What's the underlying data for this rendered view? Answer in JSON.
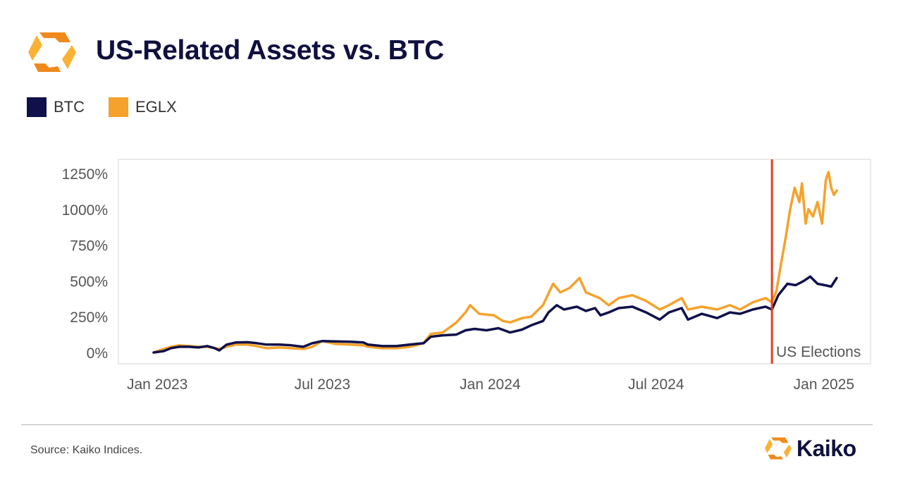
{
  "header": {
    "title": "US-Related Assets vs. BTC"
  },
  "footer": {
    "source": "Source: Kaiko Indices.",
    "brand": "Kaiko"
  },
  "colors": {
    "btc": "#10104a",
    "eglx": "#f5a22c",
    "event": "#e8401c",
    "brand_dark": "#f08a1c",
    "brand_light": "#f9b233"
  },
  "chart_data": {
    "type": "line",
    "title": "US-Related Assets vs. BTC",
    "xlabel": "",
    "ylabel": "",
    "x_ticks": [
      "Jan 2023",
      "Jul 2023",
      "Jan 2024",
      "Jul 2024",
      "Jan 2025"
    ],
    "y_ticks": [
      "0%",
      "250%",
      "500%",
      "750%",
      "1000%",
      "1250%"
    ],
    "ylim": [
      0,
      1300
    ],
    "x_range": [
      "2022-12-28",
      "2025-01-15"
    ],
    "grid": false,
    "legend_position": "top-left",
    "annotation": {
      "label": "US Elections",
      "date": "2024-11-05"
    },
    "series": [
      {
        "name": "BTC",
        "points": [
          [
            "2022-12-28",
            0
          ],
          [
            "2023-01-08",
            10
          ],
          [
            "2023-01-16",
            30
          ],
          [
            "2023-01-25",
            40
          ],
          [
            "2023-02-05",
            40
          ],
          [
            "2023-02-15",
            35
          ],
          [
            "2023-02-25",
            45
          ],
          [
            "2023-03-05",
            30
          ],
          [
            "2023-03-10",
            15
          ],
          [
            "2023-03-18",
            55
          ],
          [
            "2023-03-28",
            70
          ],
          [
            "2023-04-10",
            72
          ],
          [
            "2023-04-20",
            65
          ],
          [
            "2023-05-01",
            55
          ],
          [
            "2023-05-15",
            55
          ],
          [
            "2023-05-28",
            50
          ],
          [
            "2023-06-10",
            40
          ],
          [
            "2023-06-20",
            65
          ],
          [
            "2023-07-01",
            80
          ],
          [
            "2023-07-15",
            78
          ],
          [
            "2023-08-01",
            75
          ],
          [
            "2023-08-15",
            70
          ],
          [
            "2023-08-20",
            55
          ],
          [
            "2023-09-05",
            45
          ],
          [
            "2023-09-20",
            45
          ],
          [
            "2023-10-05",
            55
          ],
          [
            "2023-10-20",
            65
          ],
          [
            "2023-10-28",
            110
          ],
          [
            "2023-11-10",
            120
          ],
          [
            "2023-11-25",
            125
          ],
          [
            "2023-12-05",
            155
          ],
          [
            "2023-12-15",
            165
          ],
          [
            "2023-12-28",
            155
          ],
          [
            "2024-01-10",
            170
          ],
          [
            "2024-01-23",
            140
          ],
          [
            "2024-02-05",
            160
          ],
          [
            "2024-02-15",
            190
          ],
          [
            "2024-02-28",
            220
          ],
          [
            "2024-03-05",
            280
          ],
          [
            "2024-03-14",
            330
          ],
          [
            "2024-03-22",
            300
          ],
          [
            "2024-04-05",
            320
          ],
          [
            "2024-04-15",
            290
          ],
          [
            "2024-04-25",
            310
          ],
          [
            "2024-05-01",
            260
          ],
          [
            "2024-05-10",
            280
          ],
          [
            "2024-05-21",
            310
          ],
          [
            "2024-06-05",
            320
          ],
          [
            "2024-06-20",
            280
          ],
          [
            "2024-07-05",
            230
          ],
          [
            "2024-07-15",
            280
          ],
          [
            "2024-07-29",
            310
          ],
          [
            "2024-08-05",
            230
          ],
          [
            "2024-08-20",
            270
          ],
          [
            "2024-09-06",
            240
          ],
          [
            "2024-09-20",
            280
          ],
          [
            "2024-10-01",
            270
          ],
          [
            "2024-10-15",
            300
          ],
          [
            "2024-10-29",
            320
          ],
          [
            "2024-11-05",
            300
          ],
          [
            "2024-11-12",
            400
          ],
          [
            "2024-11-22",
            480
          ],
          [
            "2024-12-01",
            470
          ],
          [
            "2024-12-10",
            500
          ],
          [
            "2024-12-17",
            530
          ],
          [
            "2024-12-25",
            480
          ],
          [
            "2025-01-02",
            470
          ],
          [
            "2025-01-09",
            460
          ],
          [
            "2025-01-15",
            520
          ]
        ]
      },
      {
        "name": "EGLX",
        "points": [
          [
            "2022-12-28",
            0
          ],
          [
            "2023-01-08",
            25
          ],
          [
            "2023-01-16",
            40
          ],
          [
            "2023-01-25",
            50
          ],
          [
            "2023-02-05",
            45
          ],
          [
            "2023-02-15",
            40
          ],
          [
            "2023-02-25",
            40
          ],
          [
            "2023-03-05",
            30
          ],
          [
            "2023-03-10",
            25
          ],
          [
            "2023-03-18",
            40
          ],
          [
            "2023-03-28",
            55
          ],
          [
            "2023-04-10",
            55
          ],
          [
            "2023-04-20",
            45
          ],
          [
            "2023-05-01",
            30
          ],
          [
            "2023-05-15",
            35
          ],
          [
            "2023-05-28",
            30
          ],
          [
            "2023-06-10",
            25
          ],
          [
            "2023-06-20",
            40
          ],
          [
            "2023-07-01",
            80
          ],
          [
            "2023-07-15",
            60
          ],
          [
            "2023-08-01",
            55
          ],
          [
            "2023-08-15",
            50
          ],
          [
            "2023-08-20",
            40
          ],
          [
            "2023-09-05",
            30
          ],
          [
            "2023-09-20",
            30
          ],
          [
            "2023-10-05",
            40
          ],
          [
            "2023-10-20",
            65
          ],
          [
            "2023-10-28",
            130
          ],
          [
            "2023-11-10",
            140
          ],
          [
            "2023-11-25",
            210
          ],
          [
            "2023-12-05",
            280
          ],
          [
            "2023-12-10",
            330
          ],
          [
            "2023-12-20",
            270
          ],
          [
            "2024-01-05",
            260
          ],
          [
            "2024-01-15",
            220
          ],
          [
            "2024-01-23",
            210
          ],
          [
            "2024-02-05",
            240
          ],
          [
            "2024-02-15",
            250
          ],
          [
            "2024-02-28",
            330
          ],
          [
            "2024-03-10",
            480
          ],
          [
            "2024-03-18",
            420
          ],
          [
            "2024-03-28",
            450
          ],
          [
            "2024-04-08",
            520
          ],
          [
            "2024-04-15",
            420
          ],
          [
            "2024-04-30",
            380
          ],
          [
            "2024-05-10",
            330
          ],
          [
            "2024-05-21",
            380
          ],
          [
            "2024-06-05",
            400
          ],
          [
            "2024-06-20",
            360
          ],
          [
            "2024-07-05",
            300
          ],
          [
            "2024-07-15",
            330
          ],
          [
            "2024-07-29",
            380
          ],
          [
            "2024-08-05",
            300
          ],
          [
            "2024-08-20",
            320
          ],
          [
            "2024-09-06",
            300
          ],
          [
            "2024-09-20",
            330
          ],
          [
            "2024-10-01",
            300
          ],
          [
            "2024-10-15",
            350
          ],
          [
            "2024-10-29",
            380
          ],
          [
            "2024-11-05",
            350
          ],
          [
            "2024-11-10",
            430
          ],
          [
            "2024-11-15",
            620
          ],
          [
            "2024-11-20",
            800
          ],
          [
            "2024-11-25",
            1000
          ],
          [
            "2024-11-30",
            1150
          ],
          [
            "2024-12-05",
            1050
          ],
          [
            "2024-12-08",
            1180
          ],
          [
            "2024-12-12",
            900
          ],
          [
            "2024-12-15",
            1000
          ],
          [
            "2024-12-20",
            950
          ],
          [
            "2024-12-25",
            1050
          ],
          [
            "2024-12-30",
            900
          ],
          [
            "2025-01-03",
            1200
          ],
          [
            "2025-01-06",
            1260
          ],
          [
            "2025-01-09",
            1150
          ],
          [
            "2025-01-12",
            1100
          ],
          [
            "2025-01-15",
            1130
          ]
        ]
      }
    ]
  }
}
